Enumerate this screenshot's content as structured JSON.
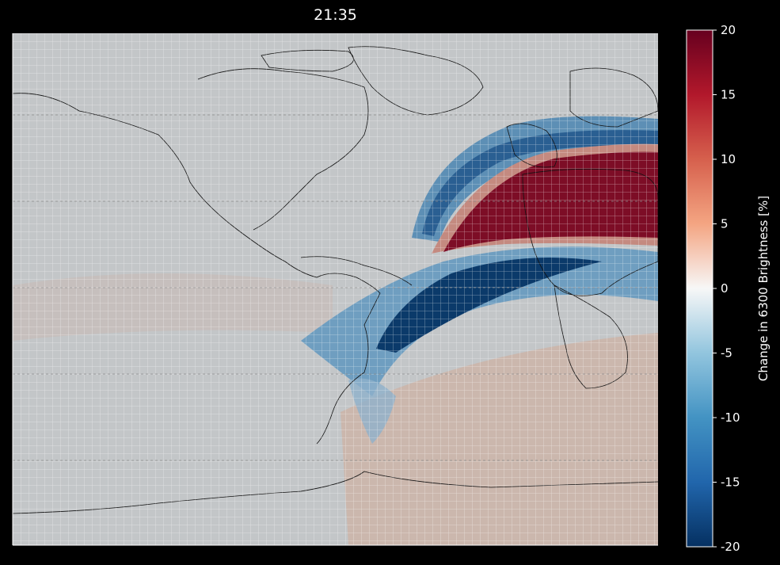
{
  "title": "21:35",
  "chart_data": {
    "type": "heatmap",
    "title": "21:35",
    "map": "geographic map of the Americas and Atlantic with coastlines",
    "grid": true,
    "colormap": "RdBu_r (blue negative, red positive)",
    "colorbar": {
      "label": "Change in 6300 Brightness [%]",
      "range": [
        -20,
        20
      ],
      "ticks": [
        20,
        15,
        10,
        5,
        0,
        -5,
        -10,
        -15,
        -20
      ],
      "placement": "right"
    },
    "features": [
      {
        "description": "strong positive band over North Africa / Europe",
        "value": 20
      },
      {
        "description": "negative arc over western North Atlantic",
        "value": -15
      },
      {
        "description": "strong negative band over tropical Atlantic / Brazil",
        "value": -20
      },
      {
        "description": "weak positive region over South Atlantic",
        "value": 4
      }
    ]
  },
  "colors": {
    "background": "#000000",
    "neutral": "#c3c6c8",
    "max_red": "#67001f",
    "max_blue": "#053061"
  }
}
